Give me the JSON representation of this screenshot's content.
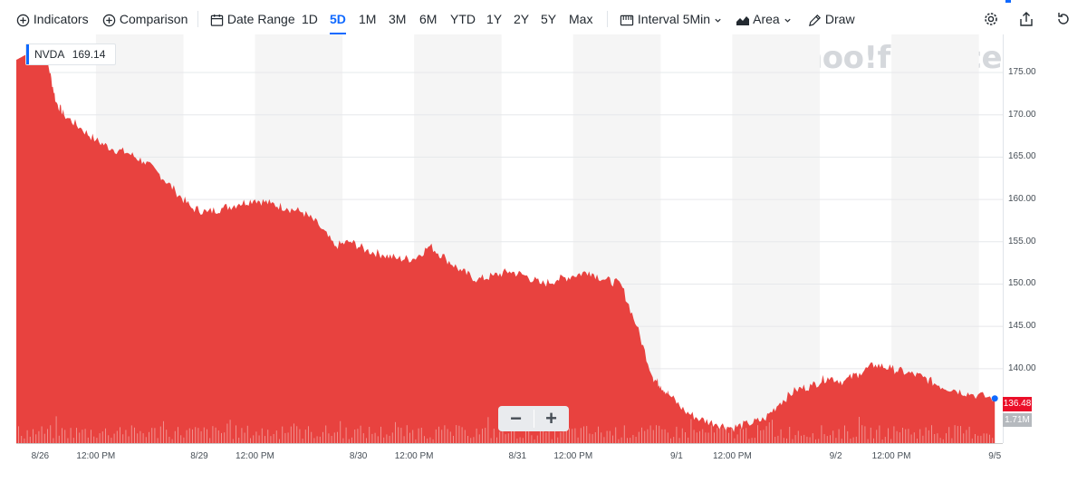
{
  "toolbar": {
    "indicators": "Indicators",
    "comparison": "Comparison",
    "date_range": "Date Range",
    "ranges": [
      "1D",
      "5D",
      "1M",
      "3M",
      "6M",
      "YTD",
      "1Y",
      "2Y",
      "5Y",
      "Max"
    ],
    "active_range": "5D",
    "interval_label": "Interval",
    "interval_value": "5Min",
    "chart_type": "Area",
    "draw": "Draw"
  },
  "watermark": "yahoo!finance",
  "ticker": {
    "symbol": "NVDA",
    "value": "169.14"
  },
  "current_price_tag": "136.48",
  "volume_tag": "1.71M",
  "zoom": {
    "minus": "−",
    "plus": "+"
  },
  "colors": {
    "area": "#e8423f",
    "accent": "#0f69ff",
    "price_tag": "#eb0f29"
  },
  "chart_data": {
    "type": "area",
    "title": "NVDA",
    "ylim": [
      131.2,
      179.5
    ],
    "y_ticks": [
      "175.00",
      "170.00",
      "165.00",
      "160.00",
      "155.00",
      "150.00",
      "145.00",
      "140.00"
    ],
    "x_ticks": [
      "8/26",
      "12:00 PM",
      "8/29",
      "12:00 PM",
      "8/30",
      "12:00 PM",
      "8/31",
      "12:00 PM",
      "9/1",
      "12:00 PM",
      "9/2",
      "12:00 PM",
      "9/5"
    ],
    "xlim": [
      0,
      6.2
    ],
    "x_tick_positions": [
      0.15,
      0.5,
      1.15,
      1.5,
      2.15,
      2.5,
      3.15,
      3.5,
      4.15,
      4.5,
      5.15,
      5.5,
      6.15
    ],
    "series": [
      {
        "name": "NVDA",
        "x": [
          0,
          0.1,
          0.2,
          0.25,
          0.3,
          0.4,
          0.5,
          0.6,
          0.7,
          0.8,
          0.9,
          1.0,
          1.1,
          1.2,
          1.3,
          1.4,
          1.5,
          1.6,
          1.7,
          1.8,
          1.9,
          2.0,
          2.1,
          2.2,
          2.3,
          2.4,
          2.5,
          2.6,
          2.7,
          2.8,
          2.9,
          3.0,
          3.1,
          3.2,
          3.3,
          3.4,
          3.5,
          3.6,
          3.7,
          3.8,
          3.9,
          4.0,
          4.05,
          4.1,
          4.2,
          4.3,
          4.4,
          4.5,
          4.6,
          4.7,
          4.8,
          4.9,
          5.0,
          5.1,
          5.2,
          5.3,
          5.4,
          5.5,
          5.6,
          5.7,
          5.8,
          5.9,
          6.0,
          6.15
        ],
        "values": [
          176.5,
          177.5,
          176.0,
          171.5,
          170.0,
          168.5,
          167.0,
          166.0,
          165.5,
          164.5,
          163.0,
          161.0,
          159.0,
          158.5,
          159.0,
          159.5,
          160.0,
          159.5,
          159.0,
          158.5,
          157.0,
          154.5,
          155.0,
          154.0,
          153.5,
          153.0,
          153.0,
          154.5,
          153.0,
          151.5,
          150.5,
          151.0,
          151.5,
          151.0,
          150.0,
          150.5,
          151.0,
          151.5,
          150.5,
          150.0,
          145.0,
          139.0,
          138.0,
          137.0,
          135.0,
          134.0,
          133.5,
          133.0,
          133.5,
          134.0,
          136.0,
          137.5,
          138.0,
          139.0,
          138.5,
          139.5,
          140.5,
          140.0,
          139.5,
          139.0,
          138.0,
          137.5,
          137.0,
          136.48
        ]
      }
    ],
    "volume_label": "1.71M"
  }
}
